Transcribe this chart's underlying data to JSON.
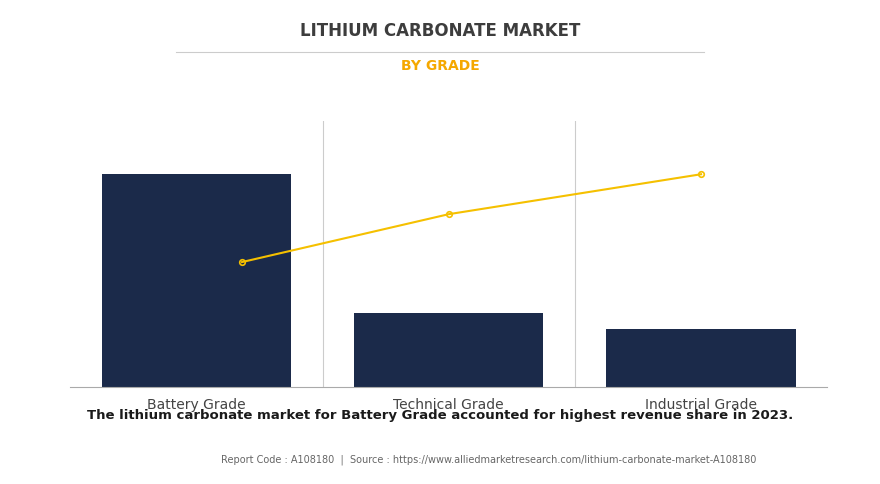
{
  "title": "LITHIUM CARBONATE MARKET",
  "subtitle": "BY GRADE",
  "categories": [
    "Battery Grade",
    "Technical Grade",
    "Industrial Grade"
  ],
  "bar_values": [
    0.8,
    0.28,
    0.22
  ],
  "bar_color": "#1b2a4a",
  "line_x": [
    0.18,
    1.0,
    2.0
  ],
  "line_y": [
    0.47,
    0.65,
    0.8
  ],
  "line_color": "#f5c000",
  "line_marker": "o",
  "background_color": "#ffffff",
  "title_fontsize": 12,
  "subtitle_fontsize": 10,
  "subtitle_color": "#f5a800",
  "note_text": "The lithium carbonate market for Battery Grade accounted for highest revenue share in 2023.",
  "footer_text": "Report Code : A108180  |  Source : https://www.alliedmarketresearch.com/lithium-carbonate-market-A108180",
  "ylim": [
    0,
    1.0
  ],
  "bar_width": 0.75,
  "xlim": [
    -0.5,
    2.5
  ],
  "vline_positions": [
    0.5,
    1.5
  ],
  "title_color": "#3d3d3d"
}
